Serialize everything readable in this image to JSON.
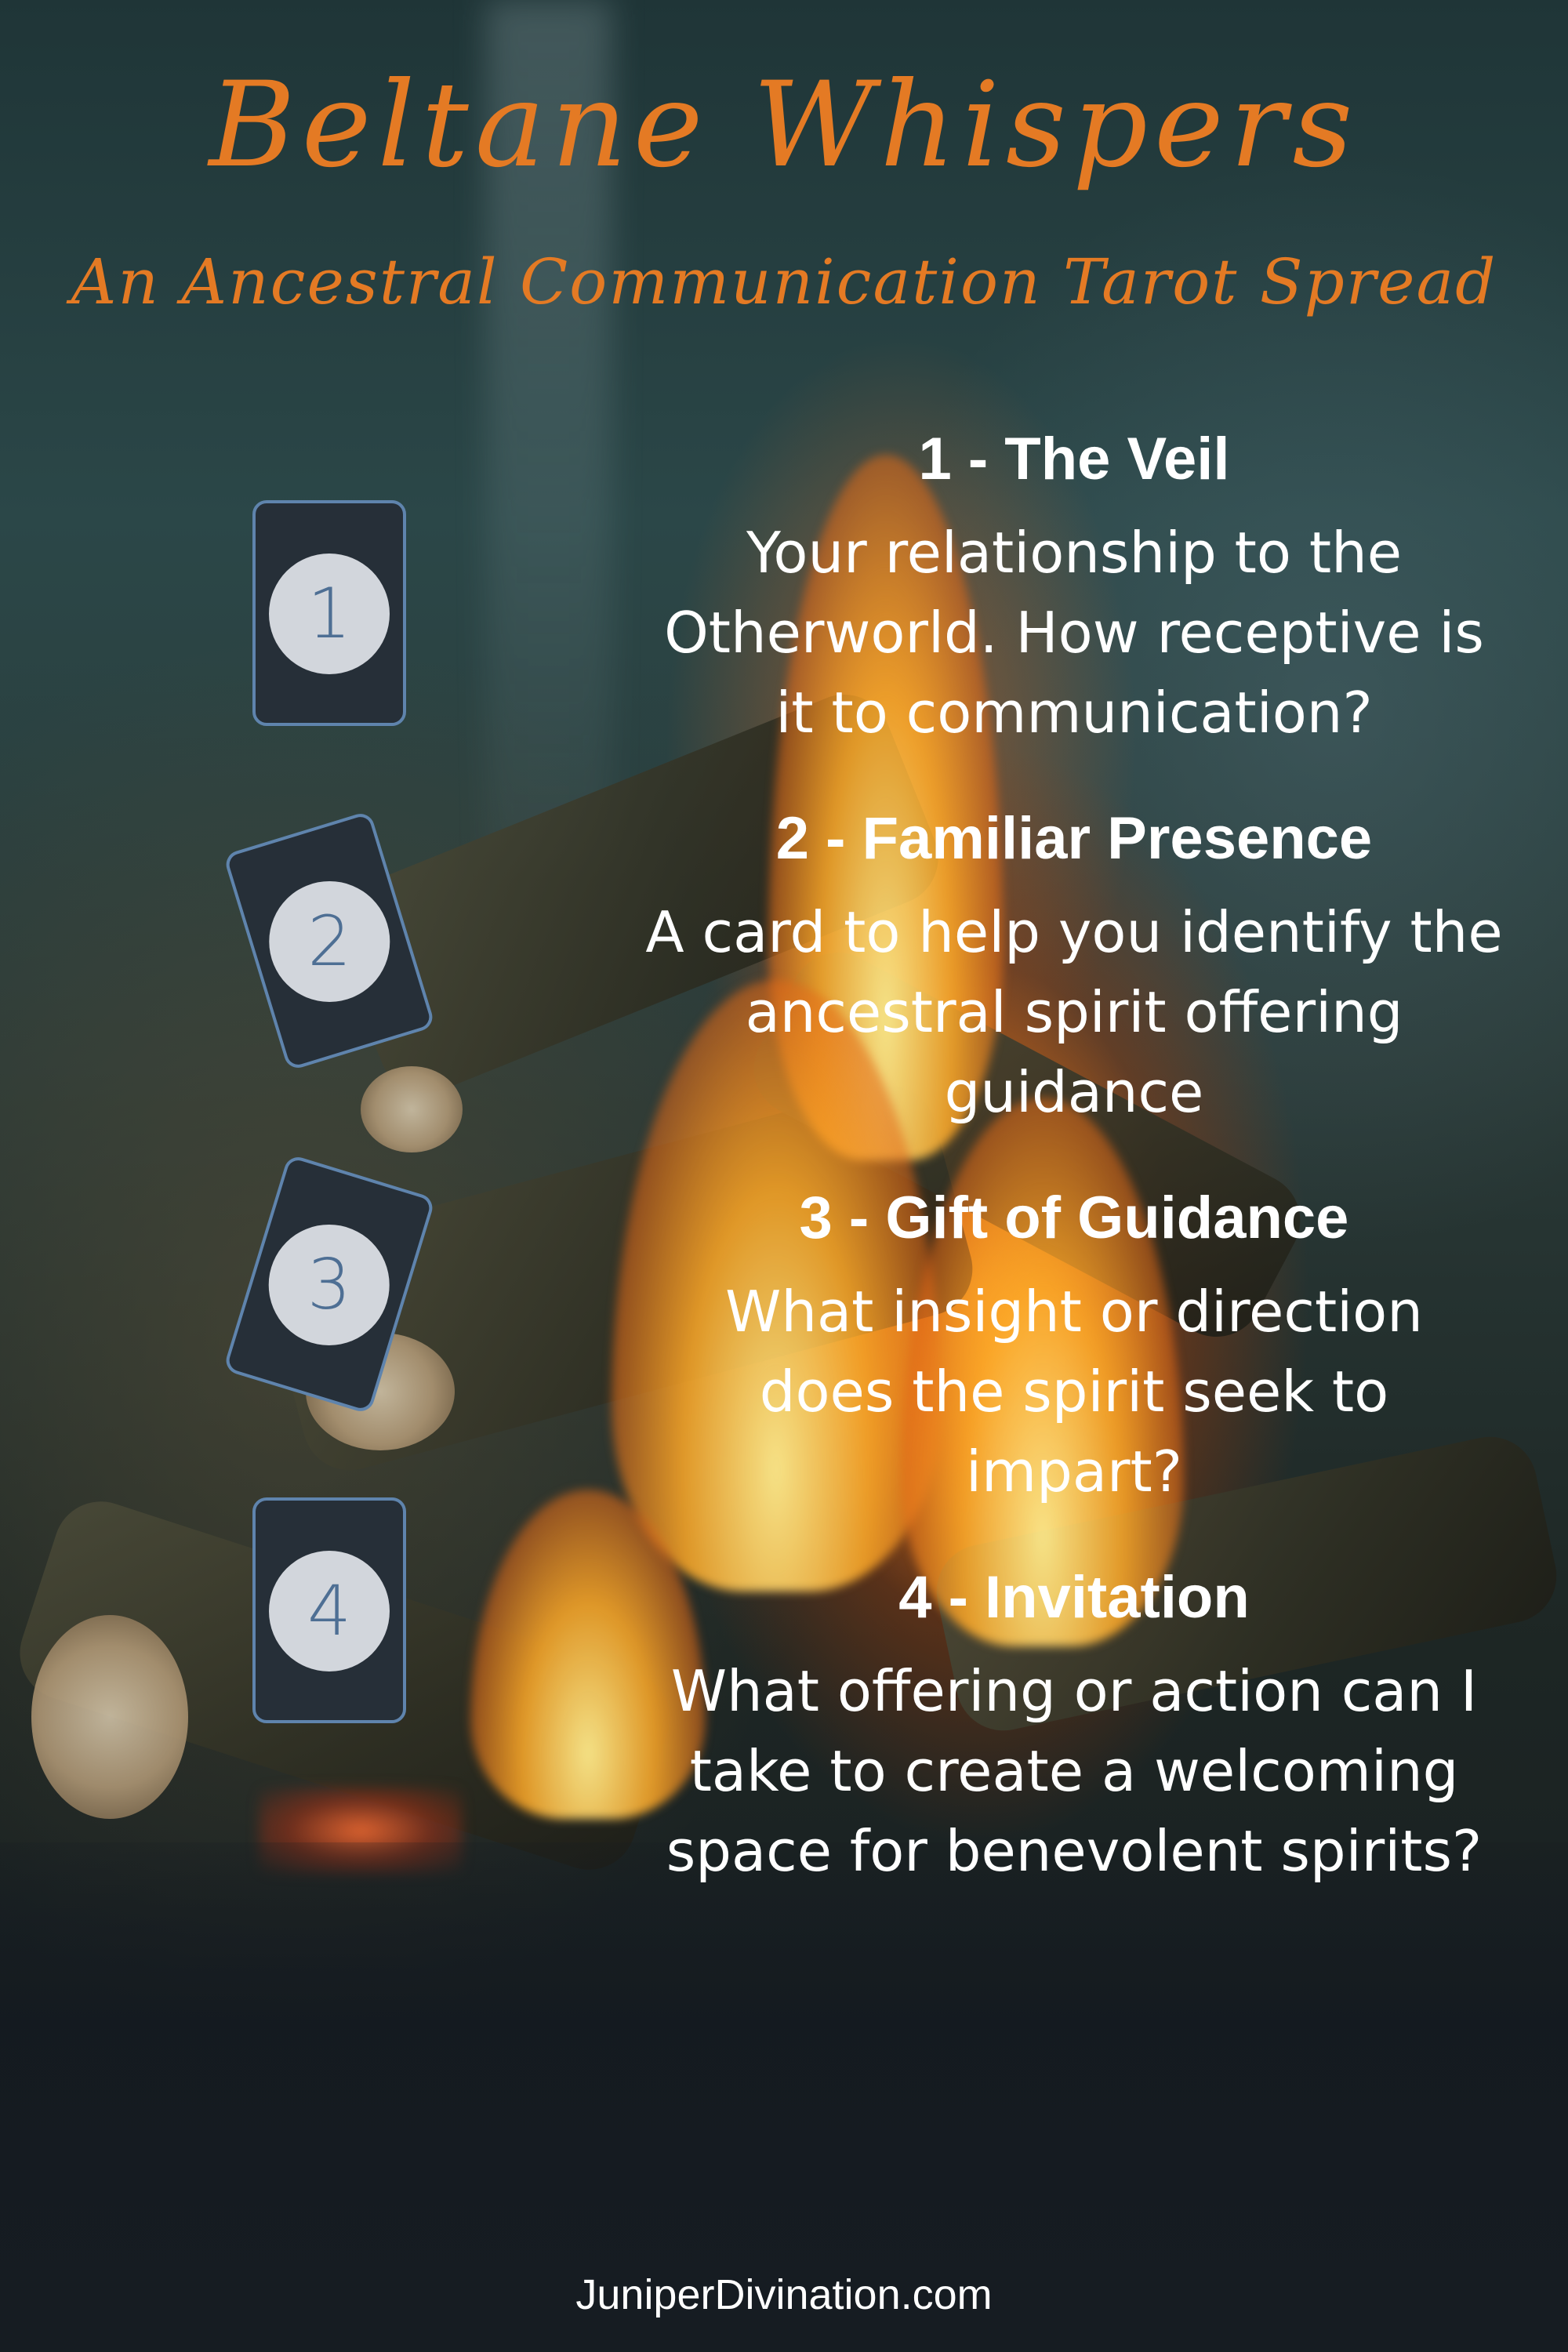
{
  "title": "Beltane Whispers",
  "subtitle": "An Ancestral Communication Tarot Spread",
  "cards": [
    {
      "number": "1"
    },
    {
      "number": "2"
    },
    {
      "number": "3"
    },
    {
      "number": "4"
    }
  ],
  "positions": [
    {
      "heading": "1 - The Veil",
      "description": "Your relationship to the Otherworld. How receptive is it to communication?"
    },
    {
      "heading": "2 - Familiar Presence",
      "description": "A card to help you identify the ancestral spirit offering guidance"
    },
    {
      "heading": "3 - Gift of Guidance",
      "description": "What insight or direction does the spirit seek to impart?"
    },
    {
      "heading": "4 - Invitation",
      "description": "What offering or action can I take to create a welcoming space for benevolent spirits?"
    }
  ],
  "footer": "JuniperDivination.com",
  "colors": {
    "title": "#e47a24",
    "card_border": "#5f84ad",
    "card_fill": "#262f38",
    "number_circle": "#d2d6dc",
    "number_text": "#4e6f94",
    "body_text": "#ffffff"
  }
}
